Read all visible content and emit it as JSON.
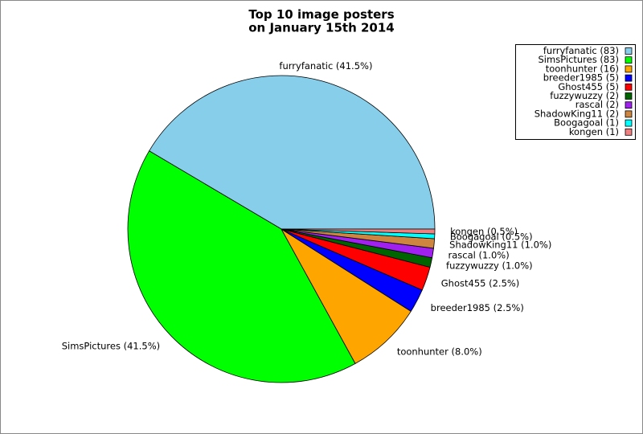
{
  "chart_data": {
    "type": "pie",
    "title": "Top 10 image posters\non January 15th 2014",
    "categories": [
      "furryfanatic (83)",
      "SimsPictures (83)",
      "toonhunter (16)",
      "breeder1985 (5)",
      "Ghost455 (5)",
      "fuzzywuzzy (2)",
      "rascal (2)",
      "ShadowKing11 (2)",
      "Boogagoal (1)",
      "kongen (1)"
    ],
    "values": [
      83,
      83,
      16,
      5,
      5,
      2,
      2,
      2,
      1,
      1
    ],
    "value_labels": [
      "furryfanatic (41.5%)",
      "SimsPictures (41.5%)",
      "toonhunter (8.0%)",
      "breeder1985 (2.5%)",
      "Ghost455 (2.5%)",
      "fuzzywuzzy (1.0%)",
      "rascal (1.0%)",
      "ShadowKing11 (1.0%)",
      "Boogagoal (0.5%)",
      "kongen (0.5%)"
    ],
    "colors": [
      "#87ceeb",
      "#00ff00",
      "#ffa500",
      "#0000ff",
      "#ff0000",
      "#006400",
      "#a020f0",
      "#cd853f",
      "#00ffff",
      "#f08080"
    ],
    "legend": "upper right"
  }
}
